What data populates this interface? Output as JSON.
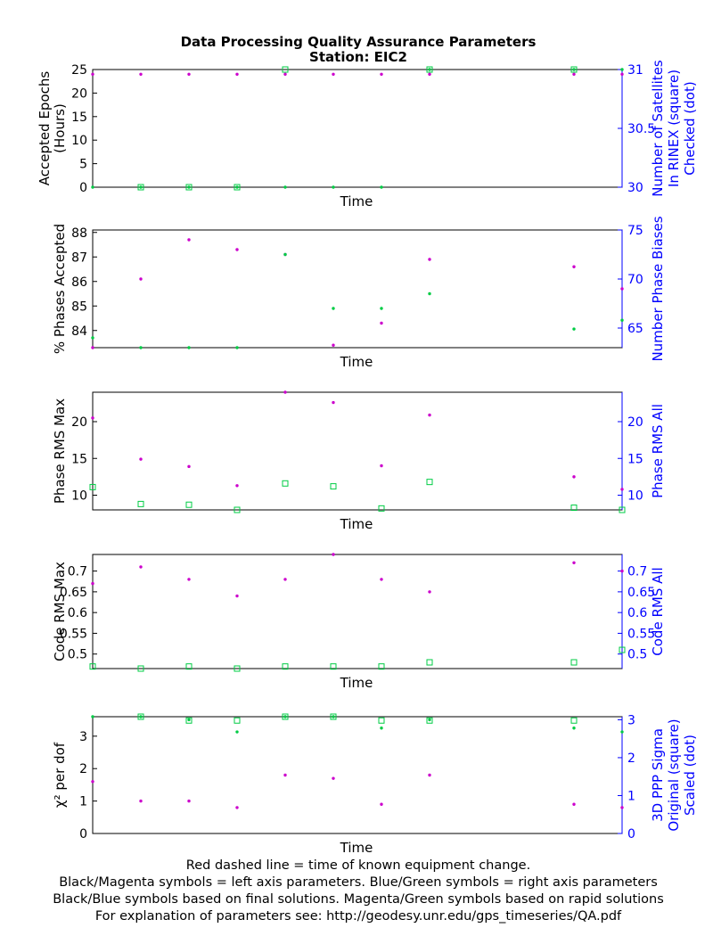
{
  "title": "Data Processing Quality Assurance Parameters",
  "subtitle": "Station: EIC2",
  "footnotes": [
    "Red dashed line = time of known equipment change.",
    "Black/Magenta symbols = left axis parameters. Blue/Green symbols = right axis parameters",
    "Black/Blue symbols based on final solutions.  Magenta/Green symbols based on rapid solutions",
    "For explanation of parameters see: http://geodesy.unr.edu/gps_timeseries/QA.pdf"
  ],
  "colors": {
    "left_axis": "#000000",
    "right_axis": "#0000ff",
    "rapid_left": "#cc00cc",
    "rapid_right": "#00cc44"
  },
  "chart_data": [
    {
      "type": "scatter",
      "xlabel": "Time",
      "ylabel_left": [
        "Accepted Epochs",
        "(Hours)"
      ],
      "ylabel_right": [
        "Number of Satellites",
        "In RINEX (square)",
        "Checked (dot)"
      ],
      "x": [
        0,
        1,
        2,
        3,
        4,
        5,
        6,
        7,
        10,
        11
      ],
      "xlim": [
        0,
        11
      ],
      "ylim_left": [
        0,
        25
      ],
      "yticks_left": [
        0,
        5,
        10,
        15,
        20,
        25
      ],
      "ylim_right": [
        30,
        31
      ],
      "yticks_right": [
        30,
        30.5,
        31
      ],
      "series": [
        {
          "axis": "left",
          "marker": "dot",
          "color": "#cc00cc",
          "values": [
            24,
            24,
            24,
            24,
            24,
            24,
            24,
            24,
            24,
            24
          ]
        },
        {
          "axis": "right",
          "marker": "square",
          "color": "#00cc44",
          "values": [
            null,
            30,
            30,
            30,
            31,
            null,
            null,
            31,
            31,
            null
          ]
        },
        {
          "axis": "right",
          "marker": "dot",
          "color": "#00cc44",
          "values": [
            30,
            30,
            30,
            30,
            30,
            30,
            30,
            31,
            31,
            31
          ]
        }
      ]
    },
    {
      "type": "scatter",
      "xlabel": "Time",
      "ylabel_left": [
        "% Phases Accepted"
      ],
      "ylabel_right": [
        "Number Phase Biases"
      ],
      "x": [
        0,
        1,
        2,
        3,
        4,
        5,
        6,
        7,
        10,
        11
      ],
      "xlim": [
        0,
        11
      ],
      "ylim_left": [
        83.3,
        88.1
      ],
      "yticks_left": [
        84,
        85,
        86,
        87,
        88
      ],
      "ylim_right": [
        63,
        75
      ],
      "yticks_right": [
        65,
        70,
        75
      ],
      "series": [
        {
          "axis": "left",
          "marker": "dot",
          "color": "#cc00cc",
          "values": [
            83.3,
            86.1,
            87.7,
            87.3,
            87.1,
            83.4,
            84.3,
            86.9,
            86.6,
            85.7
          ]
        },
        {
          "axis": "right",
          "marker": "dot",
          "color": "#00cc44",
          "values": [
            64,
            63,
            63,
            63,
            72.5,
            67,
            67,
            68.5,
            64.9,
            65.8
          ]
        }
      ]
    },
    {
      "type": "scatter",
      "xlabel": "Time",
      "ylabel_left": [
        "Phase RMS Max"
      ],
      "ylabel_right": [
        "Phase RMS All"
      ],
      "x": [
        0,
        1,
        2,
        3,
        4,
        5,
        6,
        7,
        10,
        11
      ],
      "xlim": [
        0,
        11
      ],
      "ylim_left": [
        8,
        24
      ],
      "yticks_left": [
        10,
        15,
        20
      ],
      "ylim_right": [
        8,
        24
      ],
      "yticks_right": [
        10,
        15,
        20
      ],
      "series": [
        {
          "axis": "left",
          "marker": "dot",
          "color": "#cc00cc",
          "values": [
            20.5,
            14.9,
            13.9,
            11.3,
            24,
            22.6,
            14,
            20.9,
            12.5,
            10.8
          ]
        },
        {
          "axis": "right",
          "marker": "square",
          "color": "#00cc44",
          "values": [
            11.1,
            8.8,
            8.7,
            8,
            11.6,
            11.2,
            8.2,
            11.8,
            8.3,
            8
          ]
        }
      ]
    },
    {
      "type": "scatter",
      "xlabel": "Time",
      "ylabel_left": [
        "Code RMS Max"
      ],
      "ylabel_right": [
        "Code RMS All"
      ],
      "x": [
        0,
        1,
        2,
        3,
        4,
        5,
        6,
        7,
        10,
        11
      ],
      "xlim": [
        0,
        11
      ],
      "ylim_left": [
        0.465,
        0.74
      ],
      "yticks_left": [
        0.5,
        0.55,
        0.6,
        0.65,
        0.7
      ],
      "ylim_right": [
        0.465,
        0.74
      ],
      "yticks_right": [
        0.5,
        0.55,
        0.6,
        0.65,
        0.7
      ],
      "series": [
        {
          "axis": "left",
          "marker": "dot",
          "color": "#cc00cc",
          "values": [
            0.67,
            0.71,
            0.68,
            0.64,
            0.68,
            0.74,
            0.68,
            0.65,
            0.72,
            0.7
          ]
        },
        {
          "axis": "right",
          "marker": "square",
          "color": "#00cc44",
          "values": [
            0.47,
            0.465,
            0.47,
            0.465,
            0.47,
            0.47,
            0.47,
            0.48,
            0.48,
            0.51
          ]
        }
      ]
    },
    {
      "type": "scatter",
      "xlabel": "Time",
      "ylabel_left": [
        "χ² per dof"
      ],
      "ylabel_right": [
        "3D PPP Sigma",
        "Original (square)",
        "Scaled (dot)"
      ],
      "x": [
        0,
        1,
        2,
        3,
        4,
        5,
        6,
        7,
        10,
        11
      ],
      "xlim": [
        0,
        11
      ],
      "ylim_left": [
        0,
        3.6
      ],
      "yticks_left": [
        0,
        1,
        2,
        3
      ],
      "ylim_right": [
        0,
        3.08
      ],
      "yticks_right": [
        0,
        1,
        2,
        3
      ],
      "series": [
        {
          "axis": "left",
          "marker": "dot",
          "color": "#cc00cc",
          "values": [
            1.6,
            1.0,
            1.0,
            0.8,
            1.8,
            1.7,
            0.9,
            1.8,
            0.9,
            0.8
          ]
        },
        {
          "axis": "right",
          "marker": "square",
          "color": "#00cc44",
          "values": [
            null,
            3.08,
            2.98,
            2.98,
            3.08,
            3.08,
            2.98,
            2.98,
            2.98,
            null
          ]
        },
        {
          "axis": "right",
          "marker": "dot",
          "color": "#00cc44",
          "values": [
            3.08,
            3.08,
            3.0,
            2.68,
            3.08,
            3.08,
            2.78,
            3.0,
            2.78,
            2.68
          ]
        }
      ]
    }
  ]
}
